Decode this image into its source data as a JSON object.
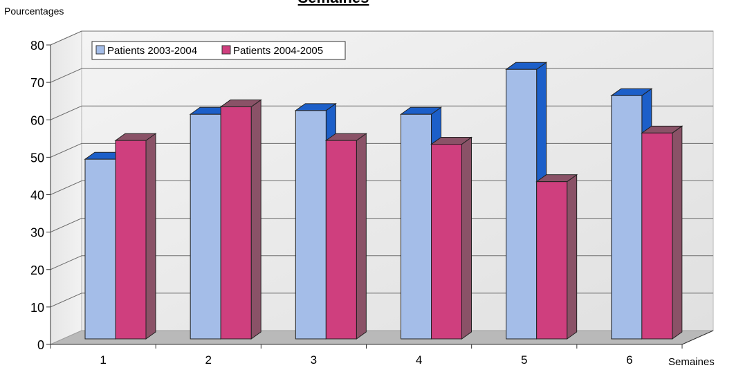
{
  "chart_data": {
    "type": "bar",
    "title": "Semaines",
    "ylabel": "Pourcentages",
    "xlabel": "Semaines",
    "categories": [
      "1",
      "2",
      "3",
      "4",
      "5",
      "6"
    ],
    "series": [
      {
        "name": "Patients 2003-2004",
        "values": [
          48,
          60,
          61,
          60,
          72,
          65
        ],
        "color": "#a4bde8",
        "side_color": "#1c5fc9"
      },
      {
        "name": "Patients 2004-2005",
        "values": [
          53,
          62,
          53,
          52,
          42,
          55
        ],
        "color": "#cf3f7e",
        "side_color": "#8a5267"
      }
    ],
    "ylim": [
      0,
      80
    ],
    "yticks": [
      "0",
      "10",
      "20",
      "30",
      "40",
      "50",
      "60",
      "70",
      "80"
    ],
    "grid": true,
    "legend_position": "top-left",
    "style": "3d-clustered"
  }
}
